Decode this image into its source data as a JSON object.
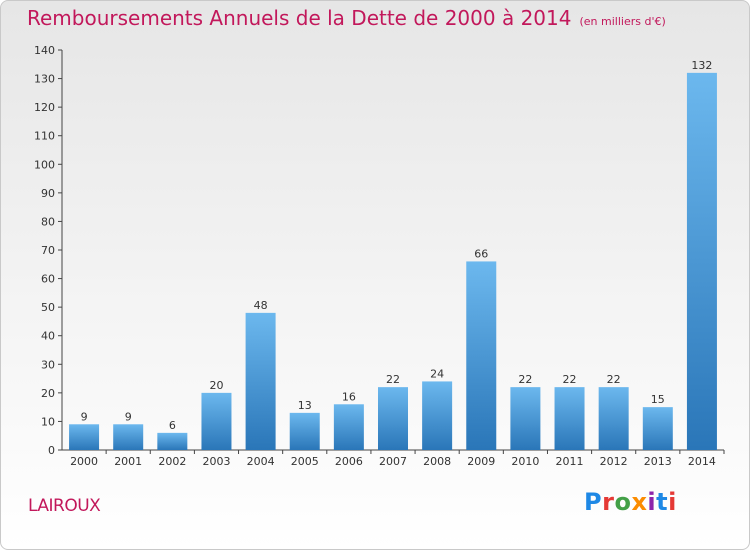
{
  "header": {
    "title": "Remboursements Annuels de la Dette de 2000 à 2014",
    "unit": "(en milliers d'€)"
  },
  "footer": {
    "commune": "LAIROUX",
    "logo_text": "Proxiti",
    "logo_colors": [
      "#1e88e5",
      "#e53935",
      "#43a047",
      "#fb8c00",
      "#8e24aa",
      "#1e88e5",
      "#e53935"
    ]
  },
  "colors": {
    "title": "#c2185b",
    "bar_top": "#6cb8ee",
    "bar_bottom": "#2a76b8"
  },
  "chart_data": {
    "type": "bar",
    "title": "Remboursements Annuels de la Dette de 2000 à 2014",
    "xlabel": "",
    "ylabel": "",
    "categories": [
      "2000",
      "2001",
      "2002",
      "2003",
      "2004",
      "2005",
      "2006",
      "2007",
      "2008",
      "2009",
      "2010",
      "2011",
      "2012",
      "2013",
      "2014"
    ],
    "values": [
      9,
      9,
      6,
      20,
      48,
      13,
      16,
      22,
      24,
      66,
      22,
      22,
      22,
      15,
      132
    ],
    "ylim": [
      0,
      140
    ],
    "yticks": [
      0,
      10,
      20,
      30,
      40,
      50,
      60,
      70,
      80,
      90,
      100,
      110,
      120,
      130,
      140
    ],
    "grid": false,
    "data_labels": true
  }
}
